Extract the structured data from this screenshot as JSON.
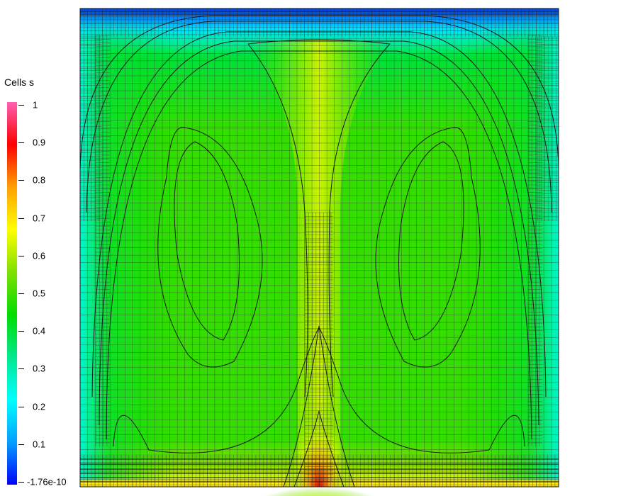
{
  "legend": {
    "title": "Cells s",
    "ticks": [
      {
        "value": 1,
        "label": "1"
      },
      {
        "value": 0.9,
        "label": "0.9"
      },
      {
        "value": 0.8,
        "label": "0.8"
      },
      {
        "value": 0.7,
        "label": "0.7"
      },
      {
        "value": 0.6,
        "label": "0.6"
      },
      {
        "value": 0.5,
        "label": "0.5"
      },
      {
        "value": 0.4,
        "label": "0.4"
      },
      {
        "value": 0.3,
        "label": "0.3"
      },
      {
        "value": 0.2,
        "label": "0.2"
      },
      {
        "value": 0.1,
        "label": "0.1"
      },
      {
        "value": 0,
        "label": "-1.76e-10"
      }
    ],
    "colormap": [
      "#0000ff",
      "#00a0ff",
      "#00ffff",
      "#00e890",
      "#00dd00",
      "#80e000",
      "#ffff00",
      "#ffa000",
      "#ff0000",
      "#ff60b0"
    ]
  },
  "chart_data": {
    "type": "heatmap",
    "title": "",
    "colorbar_label": "Cells s",
    "value_range": [
      -1.76e-10,
      1
    ],
    "grid": true,
    "adaptive_mesh": true,
    "contour_lines": true,
    "field_summary": {
      "top_edge": 0.05,
      "interior_background": 0.55,
      "central_plume": 0.7,
      "bottom_center_source": 1.0,
      "side_vortex_cores": 0.56
    }
  }
}
